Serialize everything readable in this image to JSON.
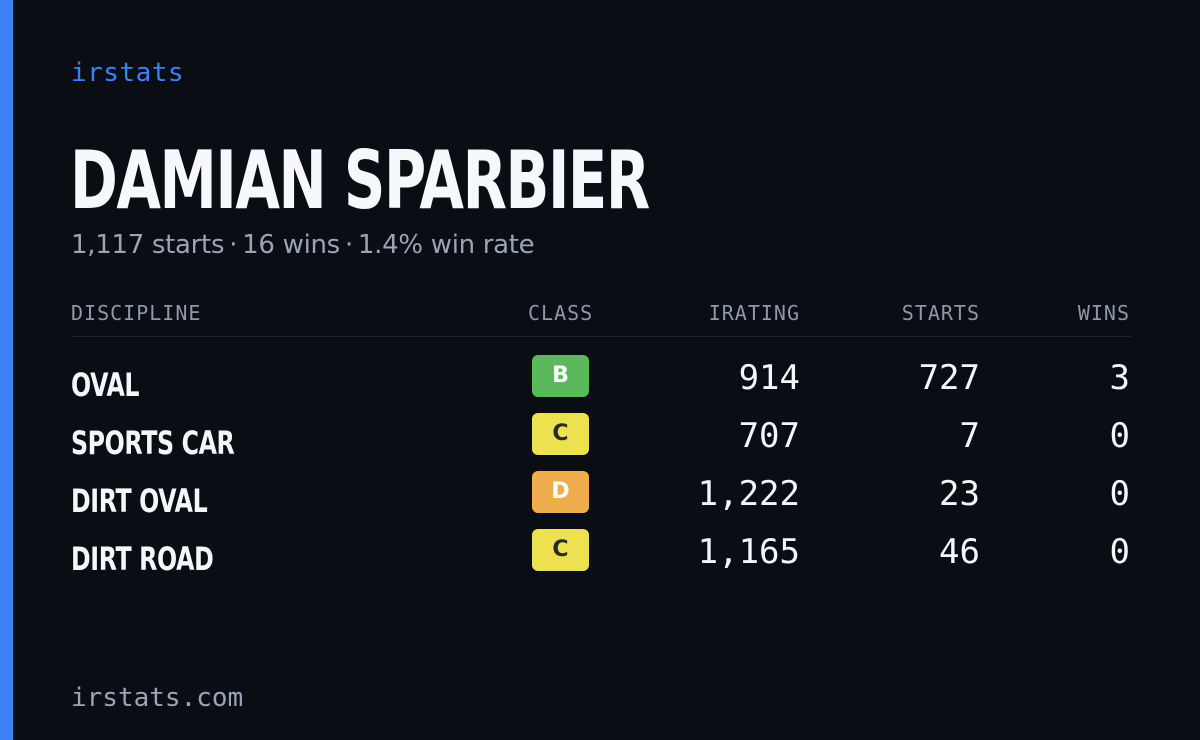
{
  "brand": "irstats",
  "driver": {
    "name": "DAMIAN SPARBIER",
    "starts": "1,117 starts",
    "wins": "16 wins",
    "win_rate": "1.4% win rate",
    "separator": "·"
  },
  "table": {
    "headers": {
      "discipline": "DISCIPLINE",
      "class": "CLASS",
      "irating": "IRATING",
      "starts": "STARTS",
      "wins": "WINS"
    },
    "rows": [
      {
        "discipline": "OVAL",
        "class": "B",
        "class_color": "#5cb85c",
        "class_text_color": "#ffffff",
        "irating": "914",
        "starts": "727",
        "wins": "3"
      },
      {
        "discipline": "SPORTS CAR",
        "class": "C",
        "class_color": "#ede150",
        "class_text_color": "#2a2a2a",
        "irating": "707",
        "starts": "7",
        "wins": "0"
      },
      {
        "discipline": "DIRT OVAL",
        "class": "D",
        "class_color": "#f0ad4e",
        "class_text_color": "#ffffff",
        "irating": "1,222",
        "starts": "23",
        "wins": "0"
      },
      {
        "discipline": "DIRT ROAD",
        "class": "C",
        "class_color": "#ede150",
        "class_text_color": "#2a2a2a",
        "irating": "1,165",
        "starts": "46",
        "wins": "0"
      }
    ]
  },
  "footer": {
    "url": "irstats.com"
  },
  "colors": {
    "background": "#0a0d14",
    "accent": "#3b82f6",
    "muted": "#9aa4b4"
  }
}
